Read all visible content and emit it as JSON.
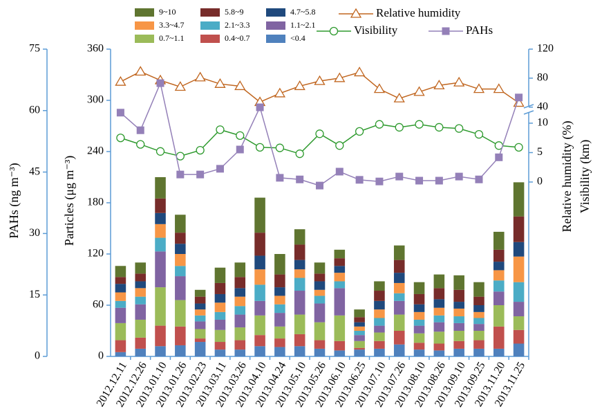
{
  "chart_data": {
    "type": "bar",
    "stacked": true,
    "categories": [
      "2012.12.11",
      "2012.12.26",
      "2013.01.10",
      "2013.01.26",
      "2013.02.23",
      "2013.03.11",
      "2013.03.26",
      "2013.04.10",
      "2013.04.24",
      "2013.05.10",
      "2013.05.26",
      "2013.06.10",
      "2013.06.25",
      "2013.07.10",
      "2013.07.26",
      "2013.08.10",
      "2013.08.26",
      "2013.09.10",
      "2013.09.25",
      "2013.11.20",
      "2013.11.25"
    ],
    "ylabel": "Particles (μg m⁻³)",
    "ylim": [
      0,
      360
    ],
    "yticks": [
      0,
      60,
      120,
      180,
      240,
      300,
      360
    ],
    "y2label": "PAHs (ng m⁻³)",
    "y2lim": [
      0,
      75
    ],
    "y2ticks": [
      0,
      15,
      30,
      45,
      60,
      75
    ],
    "y3label": "Visibility (km)",
    "y3lim": [
      0,
      12
    ],
    "y3ticks": [
      0,
      5,
      10
    ],
    "y4label": "Relative humidity (%)",
    "y4lim": [
      37,
      120
    ],
    "y4ticks": [
      40,
      80,
      120
    ],
    "series": [
      {
        "name": "<0.4",
        "color": "#4f81bd",
        "values": [
          5,
          9,
          12,
          13,
          17,
          8,
          8,
          12,
          11,
          12,
          9,
          7,
          8,
          9,
          14,
          8,
          7,
          9,
          9,
          9,
          15
        ]
      },
      {
        "name": "0.4~0.7",
        "color": "#c0504d",
        "values": [
          14,
          13,
          24,
          22,
          4,
          9,
          11,
          13,
          10,
          14,
          10,
          11,
          2,
          9,
          16,
          8,
          8,
          9,
          10,
          26,
          16
        ]
      },
      {
        "name": "0.7~1.1",
        "color": "#9bbb59",
        "values": [
          20,
          21,
          45,
          31,
          11,
          14,
          15,
          23,
          14,
          23,
          21,
          30,
          8,
          10,
          19,
          11,
          14,
          12,
          11,
          25,
          16
        ]
      },
      {
        "name": "1.1~2.1",
        "color": "#8064a2",
        "values": [
          18,
          18,
          42,
          28,
          9,
          12,
          15,
          17,
          16,
          28,
          22,
          32,
          7,
          8,
          16,
          9,
          11,
          9,
          8,
          16,
          17
        ]
      },
      {
        "name": "2.1~3.3",
        "color": "#4bacc6",
        "values": [
          8,
          9,
          16,
          12,
          7,
          9,
          10,
          19,
          10,
          15,
          9,
          8,
          5,
          9,
          9,
          7,
          8,
          8,
          7,
          13,
          23
        ]
      },
      {
        "name": "3.3~4.7",
        "color": "#f79646",
        "values": [
          10,
          10,
          16,
          14,
          7,
          11,
          11,
          18,
          10,
          10,
          7,
          10,
          5,
          10,
          12,
          9,
          9,
          9,
          7,
          12,
          30
        ]
      },
      {
        "name": "4.7~5.8",
        "color": "#1f497d",
        "values": [
          10,
          8,
          13,
          12,
          7,
          10,
          10,
          16,
          10,
          11,
          10,
          8,
          5,
          10,
          12,
          9,
          10,
          8,
          8,
          10,
          17
        ]
      },
      {
        "name": "5.8~9",
        "color": "#772c2a",
        "values": [
          8,
          9,
          17,
          13,
          8,
          13,
          13,
          27,
          15,
          18,
          9,
          9,
          6,
          12,
          15,
          12,
          13,
          14,
          10,
          14,
          30
        ]
      },
      {
        "name": "9~10",
        "color": "#5f7530",
        "values": [
          13,
          13,
          25,
          21,
          8,
          18,
          17,
          41,
          24,
          18,
          13,
          10,
          9,
          11,
          17,
          14,
          16,
          17,
          17,
          21,
          40
        ]
      },
      {
        "name": "Relative humidity",
        "type": "line",
        "marker": "triangle",
        "axis": "y4",
        "color": "#c0651e",
        "values": [
          75,
          89,
          77,
          68,
          81,
          72,
          69,
          47,
          59,
          69,
          76,
          80,
          88,
          65,
          52,
          61,
          70,
          74,
          65,
          65,
          46
        ]
      },
      {
        "name": "Visibility",
        "type": "line",
        "marker": "circle",
        "axis": "y3",
        "color": "#2e9a2e",
        "values": [
          7.5,
          6.4,
          5.2,
          4.4,
          5.4,
          8.9,
          7.9,
          5.9,
          5.8,
          4.8,
          8.2,
          6.2,
          8.6,
          9.8,
          9.3,
          9.8,
          9.3,
          9.1,
          8.1,
          6.2,
          5.9
        ]
      },
      {
        "name": "PAHs",
        "type": "line",
        "marker": "square",
        "axis": "y2",
        "color": "#9480b8",
        "values": [
          59.5,
          55.2,
          66.7,
          44.4,
          44.4,
          45.8,
          50.5,
          60.8,
          43.6,
          43.2,
          41.7,
          45.1,
          43.1,
          42.7,
          43.9,
          42.9,
          42.9,
          43.9,
          43.2,
          48.6,
          63.2
        ]
      }
    ]
  }
}
